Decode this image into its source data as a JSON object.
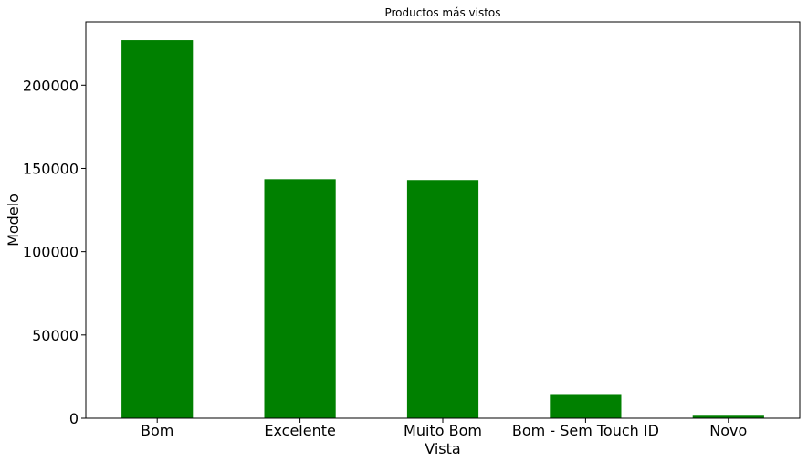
{
  "chart_data": {
    "type": "bar",
    "title": "Productos más vistos",
    "xlabel": "Vista",
    "ylabel": "Modelo",
    "categories": [
      "Bom",
      "Excelente",
      "Muito Bom",
      "Bom - Sem Touch ID",
      "Novo"
    ],
    "values": [
      227000,
      143500,
      143000,
      14000,
      1500
    ],
    "ylim": [
      0,
      238000
    ],
    "yticks": [
      0,
      50000,
      100000,
      150000,
      200000
    ],
    "ytick_labels": [
      "0",
      "50000",
      "100000",
      "150000",
      "200000"
    ],
    "bar_color": "#008000",
    "grid": false,
    "legend": "none"
  }
}
